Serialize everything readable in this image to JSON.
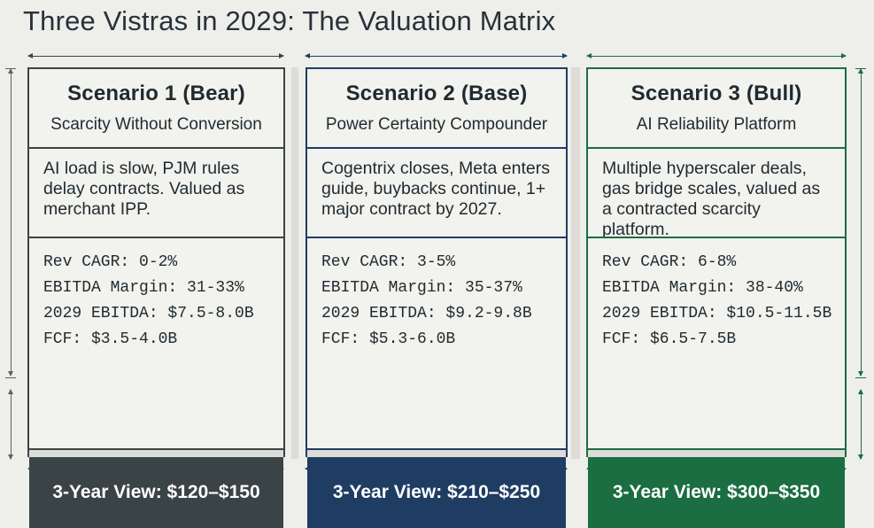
{
  "title": "Three Vistras in 2029: The Valuation Matrix",
  "colors": {
    "bear": "#3a4346",
    "base": "#1f3d63",
    "bull": "#1b6d42",
    "background": "#eeeeea"
  },
  "scenarios": [
    {
      "name": "Scenario 1 (Bear)",
      "subtitle": "Scarcity Without Conversion",
      "description": "AI load is slow, PJM rules delay contracts. Valued as merchant IPP.",
      "metrics": {
        "rev_cagr": "Rev CAGR: 0-2%",
        "ebitda_margin": "EBITDA Margin: 31-33%",
        "ebitda_2029": "2029 EBITDA: $7.5-8.0B",
        "fcf": "FCF: $3.5-4.0B"
      },
      "view": "3-Year View: $120–$150"
    },
    {
      "name": "Scenario 2 (Base)",
      "subtitle": "Power Certainty Compounder",
      "description": "Cogentrix closes, Meta enters guide, buybacks continue, 1+ major contract by 2027.",
      "metrics": {
        "rev_cagr": "Rev CAGR: 3-5%",
        "ebitda_margin": "EBITDA Margin: 35-37%",
        "ebitda_2029": "2029 EBITDA: $9.2-9.8B",
        "fcf": "FCF: $5.3-6.0B"
      },
      "view": "3-Year View: $210–$250"
    },
    {
      "name": "Scenario 3 (Bull)",
      "subtitle": "AI Reliability Platform",
      "description": "Multiple hyperscaler deals, gas bridge scales, valued as a contracted scarcity platform.",
      "metrics": {
        "rev_cagr": "Rev CAGR: 6-8%",
        "ebitda_margin": "EBITDA Margin: 38-40%",
        "ebitda_2029": "2029 EBITDA: $10.5-11.5B",
        "fcf": "FCF: $6.5-7.5B"
      },
      "view": "3-Year View: $300–$350"
    }
  ]
}
